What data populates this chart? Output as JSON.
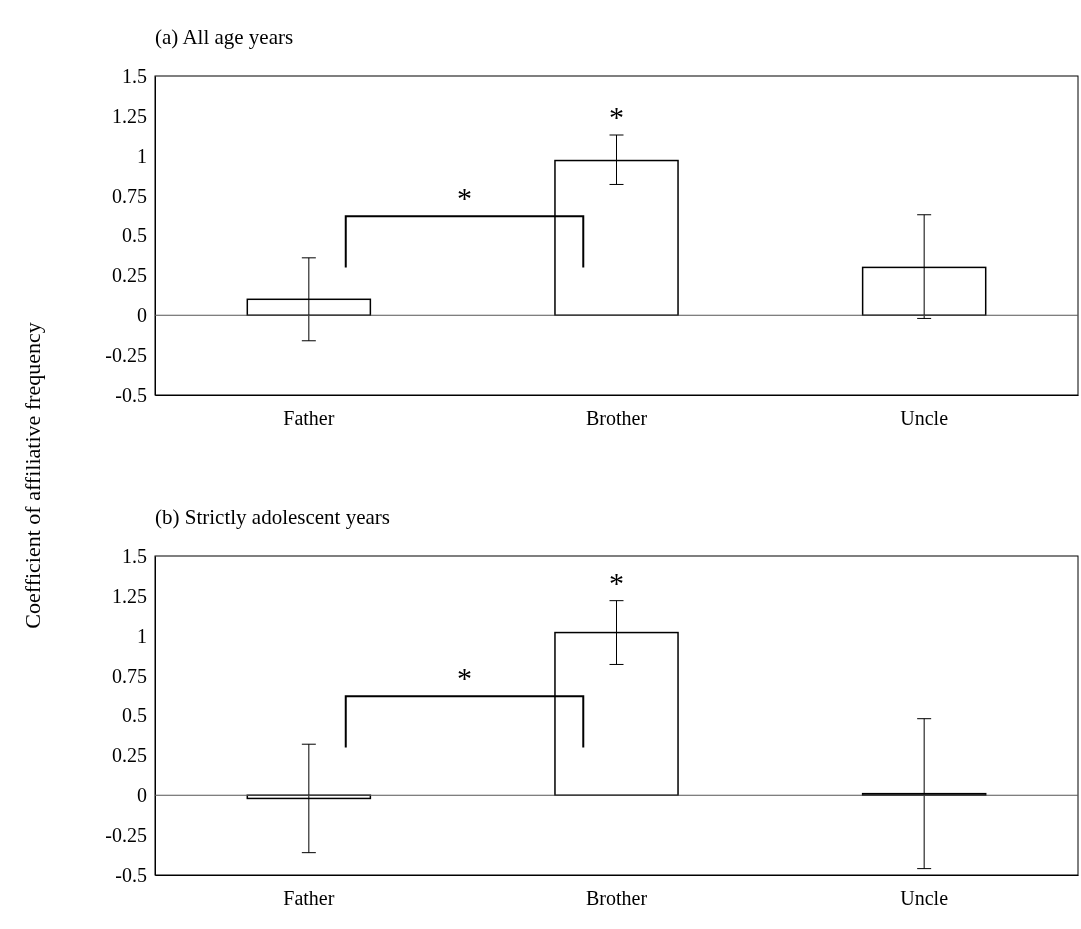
{
  "chart_data": [
    {
      "type": "bar",
      "title": "(a) All age years",
      "ylabel": "Coefficient of affiliative frequency",
      "categories": [
        "Father",
        "Brother",
        "Uncle"
      ],
      "series": [
        {
          "color": "#ffffff",
          "values": [
            0.1,
            0.97,
            0.3
          ],
          "errors": [
            [
              -0.16,
              0.36
            ],
            [
              0.82,
              1.13
            ],
            [
              -0.02,
              0.63
            ]
          ]
        }
      ],
      "ylim": [
        -0.5,
        1.5
      ],
      "yticks": [
        1.5,
        1.25,
        1,
        0.75,
        0.5,
        0.25,
        0,
        -0.25,
        -0.5
      ],
      "annotations": [
        "*",
        "*"
      ]
    },
    {
      "type": "bar",
      "title": "(b) Strictly adolescent years",
      "categories": [
        "Father",
        "Brother",
        "Uncle"
      ],
      "series": [
        {
          "color": "#ffffff",
          "values": [
            -0.02,
            1.02,
            0.01
          ],
          "errors": [
            [
              -0.36,
              0.32
            ],
            [
              0.82,
              1.22
            ],
            [
              -0.46,
              0.48
            ]
          ]
        }
      ],
      "ylim": [
        -0.5,
        1.5
      ],
      "yticks": [
        1.5,
        1.25,
        1,
        0.75,
        0.5,
        0.25,
        0,
        -0.25,
        -0.5
      ],
      "annotations": [
        "*",
        "*"
      ]
    }
  ]
}
